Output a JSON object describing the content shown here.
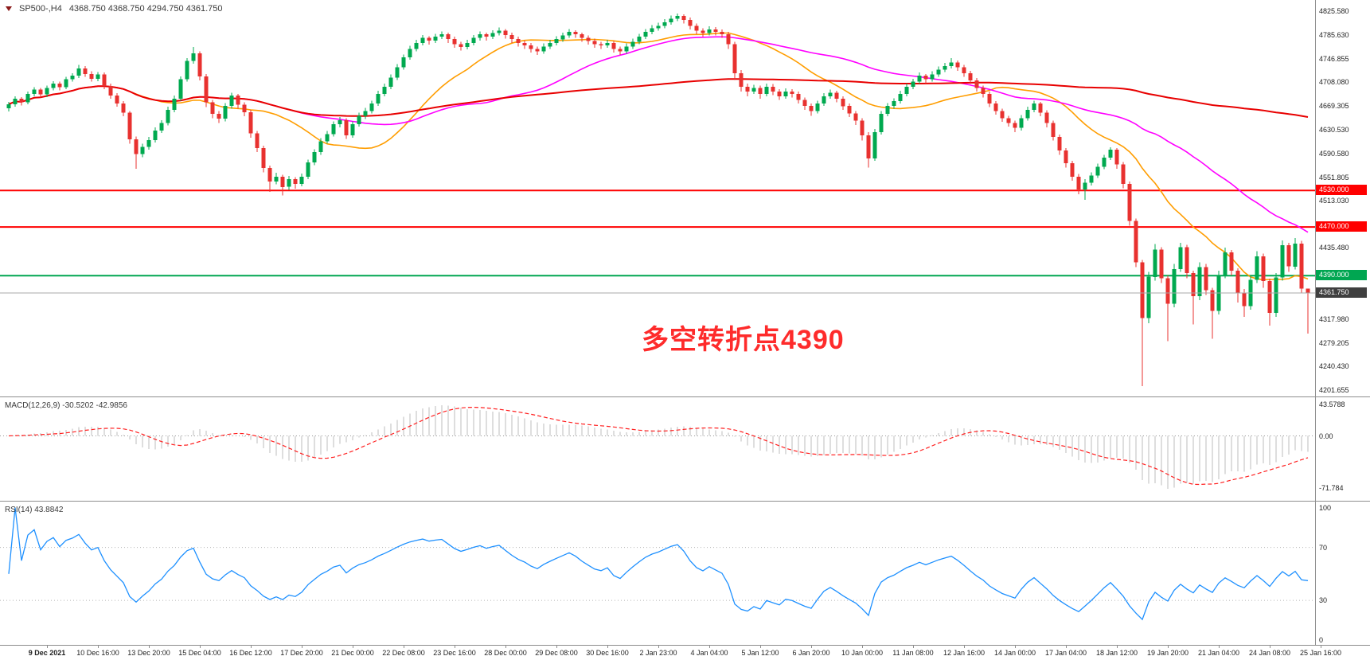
{
  "header": {
    "symbol_title": "SP500-,H4",
    "ohlc_text": "4368.750 4368.750 4294.750 4361.750"
  },
  "annotation": {
    "text": "多空转折点4390",
    "color": "#fe2b2b"
  },
  "panels": {
    "macd": {
      "label": "MACD(12,26,9) -30.5202 -42.9856",
      "axis_labels": [
        {
          "v": 43.5788,
          "t": "43.5788"
        },
        {
          "v": 0,
          "t": "0.00"
        },
        {
          "v": -71.784,
          "t": "-71.784"
        }
      ]
    },
    "rsi": {
      "label": "RSI(14) 43.8842",
      "axis_labels": [
        {
          "v": 100,
          "t": "100"
        },
        {
          "v": 70,
          "t": "70"
        },
        {
          "v": 30,
          "t": "30"
        },
        {
          "v": 0,
          "t": "0"
        }
      ],
      "levels": [
        70,
        30
      ]
    }
  },
  "time_axis": {
    "labels": [
      "9 Dec 2021",
      "10 Dec 16:00",
      "13 Dec 20:00",
      "15 Dec 04:00",
      "16 Dec 12:00",
      "17 Dec 20:00",
      "21 Dec 00:00",
      "22 Dec 08:00",
      "23 Dec 16:00",
      "28 Dec 00:00",
      "29 Dec 08:00",
      "30 Dec 16:00",
      "2 Jan 23:00",
      "4 Jan 04:00",
      "5 Jan 12:00",
      "6 Jan 20:00",
      "10 Jan 00:00",
      "11 Jan 08:00",
      "12 Jan 16:00",
      "14 Jan 00:00",
      "17 Jan 04:00",
      "18 Jan 12:00",
      "19 Jan 20:00",
      "21 Jan 04:00",
      "24 Jan 08:00",
      "25 Jan 16:00"
    ]
  },
  "chart_data": {
    "type": "candlestick",
    "symbol": "SP500-",
    "timeframe": "H4",
    "title": "SP500-,H4",
    "last_ohlc": {
      "open": 4368.75,
      "high": 4368.75,
      "low": 4294.75,
      "close": 4361.75
    },
    "price_range": [
      4192.5,
      4843.5
    ],
    "price_axis_ticks": [
      "4825.580",
      "4785.630",
      "4746.855",
      "4708.080",
      "4669.305",
      "4630.530",
      "4590.580",
      "4551.805",
      "4513.030",
      "4435.480",
      "4317.980",
      "4279.205",
      "4240.430",
      "4201.655"
    ],
    "colors": {
      "up": "#00a94f",
      "down": "#e8312f",
      "ma_fast": "#ff9d00",
      "ma_mid": "#ff00ff",
      "ma_slow": "#e80000",
      "macd_hist": "#bdbdbd",
      "macd_signal": "#ff2020",
      "rsi": "#1e90ff",
      "current_price_line": "#a8a8a8"
    },
    "moving_averages": [
      {
        "period": 20,
        "color": "#ff9d00",
        "width": 1.6
      },
      {
        "period": 45,
        "color": "#ff00ff",
        "width": 1.6
      },
      {
        "period": 150,
        "color": "#e80000",
        "width": 2
      }
    ],
    "hlines": [
      {
        "price": 4530,
        "label": "4530.000",
        "color": "#ff0000"
      },
      {
        "price": 4470,
        "label": "4470.000",
        "color": "#ff0000"
      },
      {
        "price": 4390,
        "label": "4390.000",
        "color": "#00a651"
      }
    ],
    "current_price": {
      "value": 4361.75,
      "label": "4361.750",
      "badge_color": "#3f3f3f"
    },
    "macd": {
      "fast": 12,
      "slow": 26,
      "signal": 9,
      "display_main": -30.5202,
      "display_signal": -42.9856,
      "render_range": [
        -88,
        52
      ]
    },
    "rsi": {
      "period": 14,
      "display_value": 43.8842,
      "render_range": [
        -3,
        104
      ]
    },
    "candles": [
      [
        4665,
        4676,
        4660,
        4672
      ],
      [
        4672,
        4685,
        4668,
        4681
      ],
      [
        4681,
        4684,
        4670,
        4675
      ],
      [
        4675,
        4693,
        4672,
        4689
      ],
      [
        4689,
        4700,
        4685,
        4696
      ],
      [
        4696,
        4699,
        4683,
        4688
      ],
      [
        4688,
        4703,
        4684,
        4699
      ],
      [
        4699,
        4710,
        4695,
        4706
      ],
      [
        4706,
        4709,
        4695,
        4700
      ],
      [
        4700,
        4717,
        4697,
        4713
      ],
      [
        4713,
        4723,
        4709,
        4719
      ],
      [
        4719,
        4737,
        4715,
        4731
      ],
      [
        4731,
        4735,
        4717,
        4722
      ],
      [
        4722,
        4726,
        4709,
        4714
      ],
      [
        4714,
        4725,
        4710,
        4721
      ],
      [
        4721,
        4724,
        4697,
        4702
      ],
      [
        4702,
        4706,
        4681,
        4686
      ],
      [
        4686,
        4690,
        4668,
        4673
      ],
      [
        4673,
        4677,
        4652,
        4658
      ],
      [
        4658,
        4661,
        4607,
        4614
      ],
      [
        4614,
        4619,
        4566,
        4590
      ],
      [
        4590,
        4607,
        4585,
        4602
      ],
      [
        4602,
        4618,
        4597,
        4613
      ],
      [
        4613,
        4634,
        4609,
        4629
      ],
      [
        4629,
        4646,
        4625,
        4641
      ],
      [
        4641,
        4668,
        4637,
        4663
      ],
      [
        4663,
        4686,
        4659,
        4681
      ],
      [
        4681,
        4718,
        4677,
        4713
      ],
      [
        4713,
        4748,
        4709,
        4743
      ],
      [
        4743,
        4766,
        4739,
        4756
      ],
      [
        4756,
        4759,
        4711,
        4718
      ],
      [
        4718,
        4722,
        4667,
        4675
      ],
      [
        4675,
        4679,
        4649,
        4656
      ],
      [
        4656,
        4661,
        4641,
        4648
      ],
      [
        4648,
        4674,
        4644,
        4669
      ],
      [
        4669,
        4691,
        4665,
        4686
      ],
      [
        4686,
        4689,
        4665,
        4671
      ],
      [
        4671,
        4675,
        4652,
        4659
      ],
      [
        4659,
        4663,
        4617,
        4624
      ],
      [
        4624,
        4628,
        4593,
        4600
      ],
      [
        4600,
        4604,
        4560,
        4567
      ],
      [
        4567,
        4571,
        4528,
        4545
      ],
      [
        4545,
        4559,
        4540,
        4553
      ],
      [
        4553,
        4556,
        4522,
        4536
      ],
      [
        4536,
        4554,
        4531,
        4549
      ],
      [
        4549,
        4552,
        4533,
        4541
      ],
      [
        4541,
        4558,
        4537,
        4553
      ],
      [
        4553,
        4581,
        4549,
        4576
      ],
      [
        4576,
        4598,
        4572,
        4593
      ],
      [
        4593,
        4616,
        4589,
        4611
      ],
      [
        4611,
        4628,
        4607,
        4623
      ],
      [
        4623,
        4644,
        4619,
        4639
      ],
      [
        4639,
        4651,
        4634,
        4646
      ],
      [
        4646,
        4649,
        4615,
        4621
      ],
      [
        4621,
        4644,
        4617,
        4639
      ],
      [
        4639,
        4658,
        4635,
        4653
      ],
      [
        4653,
        4666,
        4648,
        4661
      ],
      [
        4661,
        4678,
        4657,
        4673
      ],
      [
        4673,
        4694,
        4669,
        4689
      ],
      [
        4689,
        4706,
        4685,
        4701
      ],
      [
        4701,
        4721,
        4697,
        4716
      ],
      [
        4716,
        4738,
        4712,
        4733
      ],
      [
        4733,
        4754,
        4729,
        4749
      ],
      [
        4749,
        4768,
        4745,
        4763
      ],
      [
        4763,
        4778,
        4759,
        4773
      ],
      [
        4773,
        4786,
        4769,
        4781
      ],
      [
        4781,
        4784,
        4770,
        4777
      ],
      [
        4777,
        4788,
        4773,
        4783
      ],
      [
        4783,
        4792,
        4779,
        4787
      ],
      [
        4787,
        4790,
        4773,
        4779
      ],
      [
        4779,
        4783,
        4765,
        4771
      ],
      [
        4771,
        4775,
        4760,
        4766
      ],
      [
        4766,
        4778,
        4762,
        4773
      ],
      [
        4773,
        4786,
        4769,
        4781
      ],
      [
        4781,
        4792,
        4777,
        4787
      ],
      [
        4787,
        4790,
        4777,
        4783
      ],
      [
        4783,
        4794,
        4779,
        4789
      ],
      [
        4789,
        4798,
        4785,
        4793
      ],
      [
        4793,
        4796,
        4780,
        4786
      ],
      [
        4786,
        4790,
        4773,
        4779
      ],
      [
        4779,
        4783,
        4767,
        4773
      ],
      [
        4773,
        4777,
        4763,
        4769
      ],
      [
        4769,
        4773,
        4757,
        4763
      ],
      [
        4763,
        4767,
        4753,
        4759
      ],
      [
        4759,
        4772,
        4755,
        4767
      ],
      [
        4767,
        4778,
        4763,
        4773
      ],
      [
        4773,
        4784,
        4769,
        4779
      ],
      [
        4779,
        4790,
        4775,
        4785
      ],
      [
        4785,
        4796,
        4781,
        4791
      ],
      [
        4791,
        4794,
        4781,
        4787
      ],
      [
        4787,
        4790,
        4775,
        4781
      ],
      [
        4781,
        4785,
        4770,
        4776
      ],
      [
        4776,
        4780,
        4765,
        4771
      ],
      [
        4771,
        4775,
        4763,
        4769
      ],
      [
        4769,
        4778,
        4765,
        4773
      ],
      [
        4773,
        4776,
        4757,
        4763
      ],
      [
        4763,
        4767,
        4753,
        4759
      ],
      [
        4759,
        4772,
        4755,
        4767
      ],
      [
        4767,
        4780,
        4763,
        4775
      ],
      [
        4775,
        4788,
        4771,
        4783
      ],
      [
        4783,
        4796,
        4779,
        4791
      ],
      [
        4791,
        4802,
        4787,
        4797
      ],
      [
        4797,
        4806,
        4793,
        4801
      ],
      [
        4801,
        4812,
        4797,
        4807
      ],
      [
        4807,
        4818,
        4803,
        4813
      ],
      [
        4813,
        4821,
        4809,
        4817
      ],
      [
        4817,
        4820,
        4805,
        4811
      ],
      [
        4811,
        4815,
        4795,
        4801
      ],
      [
        4801,
        4805,
        4787,
        4793
      ],
      [
        4793,
        4797,
        4783,
        4789
      ],
      [
        4789,
        4800,
        4785,
        4795
      ],
      [
        4795,
        4799,
        4785,
        4791
      ],
      [
        4791,
        4795,
        4781,
        4787
      ],
      [
        4787,
        4791,
        4763,
        4771
      ],
      [
        4771,
        4775,
        4712,
        4723
      ],
      [
        4723,
        4728,
        4693,
        4701
      ],
      [
        4701,
        4706,
        4685,
        4693
      ],
      [
        4693,
        4704,
        4689,
        4699
      ],
      [
        4699,
        4703,
        4681,
        4689
      ],
      [
        4689,
        4706,
        4685,
        4701
      ],
      [
        4701,
        4705,
        4687,
        4693
      ],
      [
        4693,
        4697,
        4679,
        4685
      ],
      [
        4685,
        4698,
        4681,
        4693
      ],
      [
        4693,
        4697,
        4683,
        4689
      ],
      [
        4689,
        4693,
        4673,
        4679
      ],
      [
        4679,
        4683,
        4663,
        4669
      ],
      [
        4669,
        4673,
        4653,
        4661
      ],
      [
        4661,
        4678,
        4657,
        4673
      ],
      [
        4673,
        4690,
        4669,
        4685
      ],
      [
        4685,
        4696,
        4681,
        4691
      ],
      [
        4691,
        4694,
        4675,
        4681
      ],
      [
        4681,
        4685,
        4663,
        4669
      ],
      [
        4669,
        4673,
        4651,
        4657
      ],
      [
        4657,
        4661,
        4638,
        4645
      ],
      [
        4645,
        4649,
        4612,
        4621
      ],
      [
        4621,
        4626,
        4568,
        4583
      ],
      [
        4583,
        4631,
        4579,
        4626
      ],
      [
        4626,
        4661,
        4622,
        4656
      ],
      [
        4656,
        4674,
        4652,
        4669
      ],
      [
        4669,
        4682,
        4665,
        4677
      ],
      [
        4677,
        4694,
        4673,
        4689
      ],
      [
        4689,
        4706,
        4685,
        4701
      ],
      [
        4701,
        4714,
        4697,
        4709
      ],
      [
        4709,
        4724,
        4705,
        4719
      ],
      [
        4719,
        4722,
        4706,
        4713
      ],
      [
        4713,
        4726,
        4709,
        4721
      ],
      [
        4721,
        4734,
        4717,
        4729
      ],
      [
        4729,
        4740,
        4725,
        4735
      ],
      [
        4735,
        4748,
        4731,
        4741
      ],
      [
        4741,
        4744,
        4727,
        4733
      ],
      [
        4733,
        4737,
        4717,
        4723
      ],
      [
        4723,
        4727,
        4705,
        4711
      ],
      [
        4711,
        4715,
        4693,
        4699
      ],
      [
        4699,
        4703,
        4683,
        4689
      ],
      [
        4689,
        4693,
        4667,
        4673
      ],
      [
        4673,
        4677,
        4655,
        4661
      ],
      [
        4661,
        4665,
        4643,
        4649
      ],
      [
        4649,
        4653,
        4635,
        4641
      ],
      [
        4641,
        4645,
        4626,
        4633
      ],
      [
        4633,
        4654,
        4629,
        4649
      ],
      [
        4649,
        4668,
        4645,
        4663
      ],
      [
        4663,
        4678,
        4659,
        4673
      ],
      [
        4673,
        4676,
        4652,
        4658
      ],
      [
        4658,
        4662,
        4634,
        4641
      ],
      [
        4641,
        4645,
        4612,
        4618
      ],
      [
        4618,
        4622,
        4589,
        4596
      ],
      [
        4596,
        4600,
        4568,
        4575
      ],
      [
        4575,
        4579,
        4546,
        4553
      ],
      [
        4553,
        4557,
        4524,
        4532
      ],
      [
        4532,
        4549,
        4515,
        4543
      ],
      [
        4543,
        4560,
        4538,
        4555
      ],
      [
        4555,
        4574,
        4551,
        4569
      ],
      [
        4569,
        4589,
        4565,
        4584
      ],
      [
        4584,
        4601,
        4580,
        4597
      ],
      [
        4597,
        4600,
        4566,
        4573
      ],
      [
        4573,
        4577,
        4534,
        4541
      ],
      [
        4541,
        4545,
        4472,
        4480
      ],
      [
        4480,
        4484,
        4404,
        4412
      ],
      [
        4412,
        4416,
        4208,
        4320
      ],
      [
        4320,
        4396,
        4312,
        4388
      ],
      [
        4388,
        4442,
        4382,
        4433
      ],
      [
        4433,
        4437,
        4378,
        4386
      ],
      [
        4386,
        4390,
        4282,
        4344
      ],
      [
        4344,
        4409,
        4338,
        4401
      ],
      [
        4401,
        4444,
        4396,
        4437
      ],
      [
        4437,
        4441,
        4386,
        4394
      ],
      [
        4394,
        4398,
        4310,
        4356
      ],
      [
        4356,
        4412,
        4350,
        4404
      ],
      [
        4404,
        4409,
        4358,
        4366
      ],
      [
        4366,
        4370,
        4286,
        4332
      ],
      [
        4332,
        4398,
        4326,
        4391
      ],
      [
        4391,
        4436,
        4386,
        4428
      ],
      [
        4428,
        4432,
        4390,
        4398
      ],
      [
        4398,
        4402,
        4346,
        4362
      ],
      [
        4362,
        4368,
        4322,
        4340
      ],
      [
        4340,
        4390,
        4334,
        4383
      ],
      [
        4383,
        4430,
        4378,
        4422
      ],
      [
        4422,
        4426,
        4370,
        4381
      ],
      [
        4381,
        4385,
        4308,
        4329
      ],
      [
        4329,
        4394,
        4322,
        4387
      ],
      [
        4387,
        4448,
        4382,
        4440
      ],
      [
        4440,
        4444,
        4396,
        4405
      ],
      [
        4405,
        4452,
        4400,
        4443
      ],
      [
        4443,
        4447,
        4361,
        4368.75
      ],
      [
        4368.75,
        4368.75,
        4294.75,
        4361.75
      ]
    ]
  }
}
